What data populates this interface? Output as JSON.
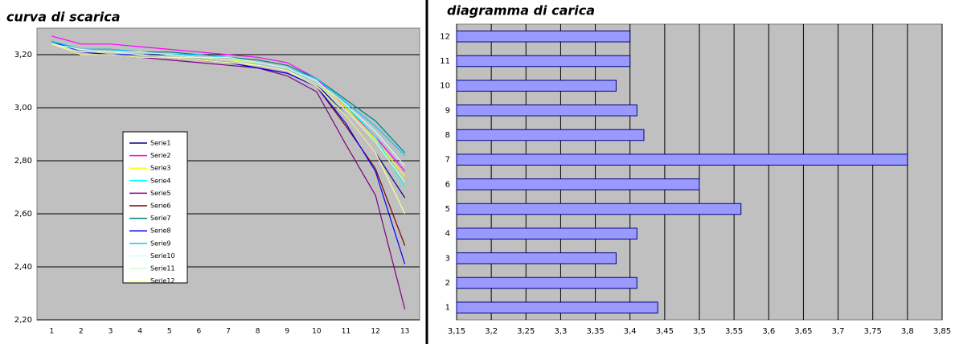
{
  "chart_data": [
    {
      "type": "line",
      "title": "curva di scarica",
      "categories": [
        "1",
        "2",
        "3",
        "4",
        "5",
        "6",
        "7",
        "8",
        "9",
        "10",
        "11",
        "12",
        "13"
      ],
      "ylim": [
        2.2,
        3.3
      ],
      "yticks": [
        {
          "value": 2.2,
          "label": "2,20"
        },
        {
          "value": 2.4,
          "label": "2,40"
        },
        {
          "value": 2.6,
          "label": "2,60"
        },
        {
          "value": 2.8,
          "label": "2,80"
        },
        {
          "value": 3.0,
          "label": "3,00"
        },
        {
          "value": 3.2,
          "label": "3,20"
        }
      ],
      "grid": true,
      "series": [
        {
          "name": "Serie1",
          "color": "#000080",
          "values": [
            3.25,
            3.22,
            3.21,
            3.2,
            3.2,
            3.19,
            3.18,
            3.16,
            3.14,
            3.09,
            2.97,
            2.83,
            2.66
          ]
        },
        {
          "name": "Serie2",
          "color": "#ff00ff",
          "values": [
            3.27,
            3.24,
            3.24,
            3.23,
            3.22,
            3.21,
            3.2,
            3.19,
            3.17,
            3.11,
            3.0,
            2.89,
            2.76
          ]
        },
        {
          "name": "Serie3",
          "color": "#ffff00",
          "values": [
            3.24,
            3.21,
            3.21,
            3.2,
            3.19,
            3.19,
            3.18,
            3.17,
            3.15,
            3.1,
            3.0,
            2.88,
            2.74
          ]
        },
        {
          "name": "Serie4",
          "color": "#00ffff",
          "values": [
            3.25,
            3.22,
            3.22,
            3.21,
            3.2,
            3.2,
            3.19,
            3.17,
            3.15,
            3.1,
            3.01,
            2.89,
            2.7
          ]
        },
        {
          "name": "Serie5",
          "color": "#800080",
          "values": [
            3.24,
            3.2,
            3.2,
            3.19,
            3.18,
            3.17,
            3.16,
            3.15,
            3.12,
            3.06,
            2.86,
            2.67,
            2.24
          ]
        },
        {
          "name": "Serie6",
          "color": "#800000",
          "values": [
            3.25,
            3.21,
            3.2,
            3.19,
            3.19,
            3.18,
            3.17,
            3.15,
            3.13,
            3.08,
            2.93,
            2.77,
            2.48
          ]
        },
        {
          "name": "Serie7",
          "color": "#008080",
          "values": [
            3.25,
            3.22,
            3.22,
            3.21,
            3.21,
            3.2,
            3.19,
            3.18,
            3.16,
            3.11,
            3.03,
            2.95,
            2.83
          ]
        },
        {
          "name": "Serie8",
          "color": "#0000ff",
          "values": [
            3.25,
            3.21,
            3.2,
            3.2,
            3.19,
            3.18,
            3.17,
            3.15,
            3.13,
            3.08,
            2.94,
            2.76,
            2.41
          ]
        },
        {
          "name": "Serie9",
          "color": "#00ccff",
          "values": [
            3.25,
            3.22,
            3.22,
            3.21,
            3.2,
            3.2,
            3.19,
            3.17,
            3.15,
            3.11,
            3.02,
            2.93,
            2.82
          ]
        },
        {
          "name": "Serie10",
          "color": "#ccffff",
          "values": [
            3.24,
            3.22,
            3.21,
            3.21,
            3.2,
            3.19,
            3.19,
            3.17,
            3.15,
            3.1,
            3.01,
            2.91,
            2.78
          ]
        },
        {
          "name": "Serie11",
          "color": "#ccffcc",
          "values": [
            3.24,
            3.21,
            3.21,
            3.2,
            3.19,
            3.19,
            3.18,
            3.16,
            3.14,
            3.09,
            2.99,
            2.87,
            2.72
          ]
        },
        {
          "name": "Serie12",
          "color": "#ffff99",
          "values": [
            3.24,
            3.2,
            3.2,
            3.19,
            3.19,
            3.18,
            3.17,
            3.16,
            3.14,
            3.08,
            2.97,
            2.83,
            2.6
          ]
        }
      ]
    },
    {
      "type": "barh",
      "title": "diagramma di carica",
      "categories": [
        "1",
        "2",
        "3",
        "4",
        "5",
        "6",
        "7",
        "8",
        "9",
        "10",
        "11",
        "12"
      ],
      "values": [
        3.44,
        3.41,
        3.38,
        3.41,
        3.56,
        3.5,
        3.8,
        3.42,
        3.41,
        3.38,
        3.4,
        3.4
      ],
      "color": "#9999ff",
      "xlim": [
        3.15,
        3.85
      ],
      "xticks": [
        {
          "value": 3.15,
          "label": "3,15"
        },
        {
          "value": 3.2,
          "label": "3,2"
        },
        {
          "value": 3.25,
          "label": "3,25"
        },
        {
          "value": 3.3,
          "label": "3,3"
        },
        {
          "value": 3.35,
          "label": "3,35"
        },
        {
          "value": 3.4,
          "label": "3,4"
        },
        {
          "value": 3.45,
          "label": "3,45"
        },
        {
          "value": 3.5,
          "label": "3,5"
        },
        {
          "value": 3.55,
          "label": "3,55"
        },
        {
          "value": 3.6,
          "label": "3,6"
        },
        {
          "value": 3.65,
          "label": "3,65"
        },
        {
          "value": 3.7,
          "label": "3,7"
        },
        {
          "value": 3.75,
          "label": "3,75"
        },
        {
          "value": 3.8,
          "label": "3,8"
        },
        {
          "value": 3.85,
          "label": "3,85"
        }
      ],
      "grid": true
    }
  ]
}
